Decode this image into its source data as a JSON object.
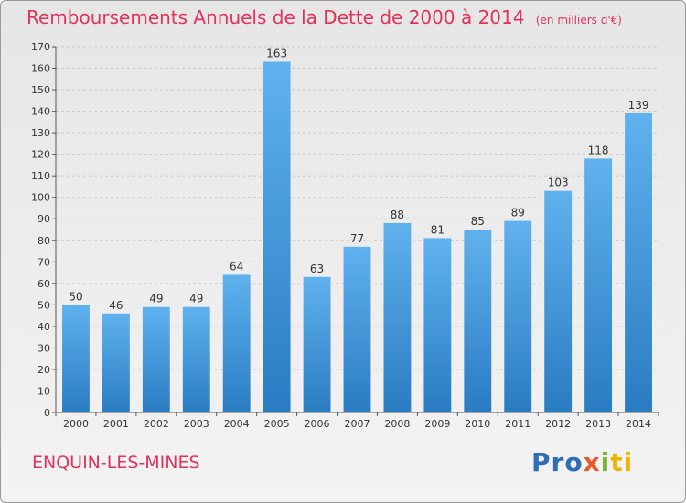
{
  "chart_data": {
    "type": "bar",
    "title": "Remboursements Annuels de la Dette de 2000 à 2014",
    "subtitle": "(en milliers d'€)",
    "categories": [
      "2000",
      "2001",
      "2002",
      "2003",
      "2004",
      "2005",
      "2006",
      "2007",
      "2008",
      "2009",
      "2010",
      "2011",
      "2012",
      "2013",
      "2014"
    ],
    "values": [
      50,
      46,
      49,
      49,
      64,
      163,
      63,
      77,
      88,
      81,
      85,
      89,
      103,
      118,
      139
    ],
    "xlabel": "",
    "ylabel": "",
    "ylim": [
      0,
      170
    ],
    "ytick_step": 10,
    "grid": true,
    "bar_color": "#3a8fd6"
  },
  "commune": "ENQUIN-LES-MINES",
  "logo": {
    "p1": "Pro",
    "p2": "x",
    "p3": "i",
    "p4": "ti"
  },
  "colors": {
    "accent": "#e0325a"
  }
}
